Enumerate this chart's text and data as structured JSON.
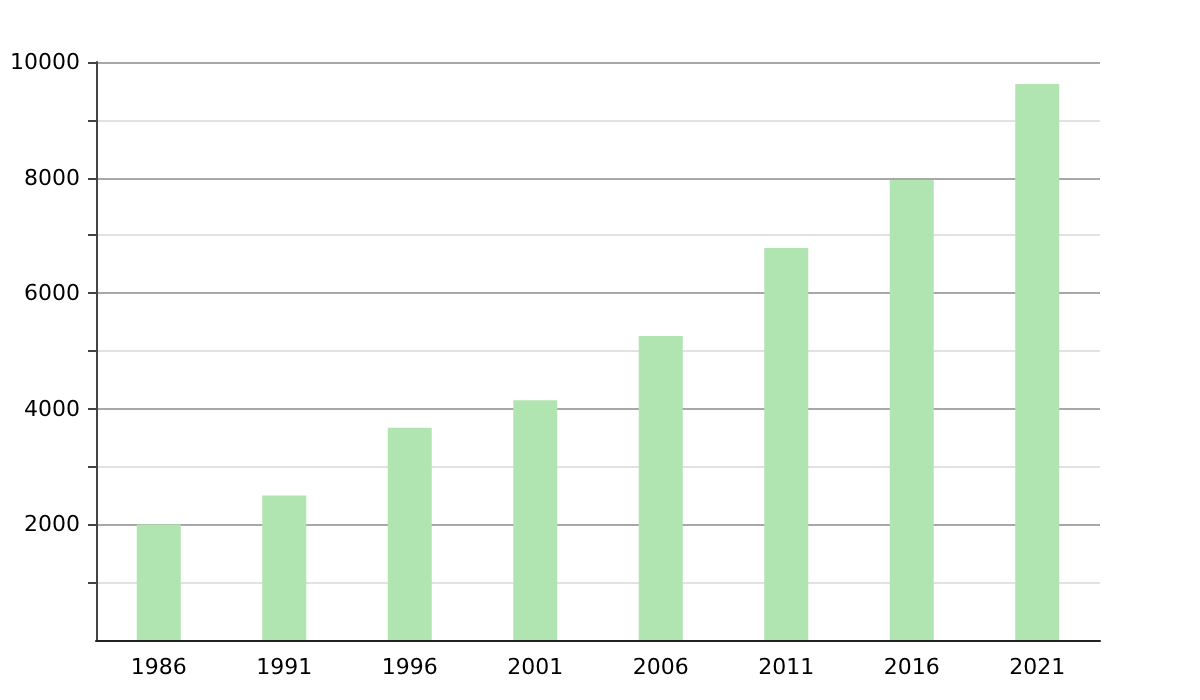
{
  "chart_data": {
    "type": "bar",
    "categories": [
      "1986",
      "1991",
      "1996",
      "2001",
      "2006",
      "2011",
      "2016",
      "2021"
    ],
    "values": [
      2000,
      2500,
      3670,
      4150,
      5260,
      6780,
      7960,
      9620
    ],
    "color": "#b0e4b0",
    "ylim": [
      0,
      10000
    ],
    "yticks": [
      {
        "value": 1000,
        "label": null
      },
      2000,
      {
        "value": 3000,
        "label": null
      },
      4000,
      {
        "value": 5000,
        "label": null
      },
      6000,
      {
        "value": 7000,
        "label": null
      },
      8000,
      {
        "value": 9000,
        "label": null
      },
      10000
    ],
    "grid": "y"
  }
}
